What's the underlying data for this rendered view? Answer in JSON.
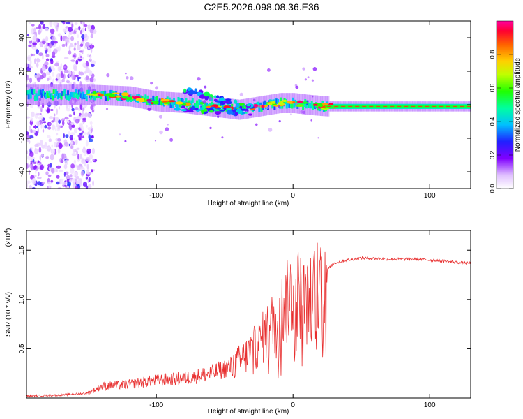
{
  "title": "C2E5.2026.098.08.36.E36",
  "colors": {
    "line": "#e83030",
    "frame": "#000000",
    "background": "#ffffff"
  },
  "chart_data": [
    {
      "type": "heatmap",
      "title": "C2E5.2026.098.08.36.E36",
      "xlabel": "Height of straight line (km)",
      "ylabel": "Frequency (Hz)",
      "xlim": [
        -195,
        130
      ],
      "ylim": [
        -50,
        50
      ],
      "x_ticks": [
        -100,
        0,
        100
      ],
      "y_ticks": [
        -40,
        -20,
        0,
        20,
        40
      ],
      "colorbar": {
        "label": "Normalized spectral amplitude",
        "range": [
          0,
          1
        ],
        "ticks": [
          0.0,
          0.2,
          0.4,
          0.6,
          0.8
        ]
      },
      "ridge": {
        "description_points_km": [
          -190,
          -150,
          -120,
          -100,
          -80,
          -60,
          -40,
          -25,
          -10,
          0,
          10,
          25,
          60,
          100,
          130
        ],
        "frequency_hz": [
          6,
          6,
          5,
          2,
          1,
          -1,
          -3,
          -1,
          1,
          1,
          0,
          -1,
          -1,
          -1,
          -1
        ]
      },
      "noise_region_km": [
        -195,
        -145
      ]
    },
    {
      "type": "line",
      "xlabel": "Height of straight line (km)",
      "ylabel": "SNR (10 * v/v)",
      "y_multiplier_label": "(x10^4)",
      "y_multiplier_text": "(x10",
      "y_multiplier_exp": "4",
      "xlim": [
        -195,
        130
      ],
      "ylim": [
        0,
        1.7
      ],
      "x_ticks": [
        -100,
        0,
        100
      ],
      "y_ticks": [
        0.5,
        1.0,
        1.5
      ],
      "series": [
        {
          "name": "SNR",
          "x": [
            -195,
            -170,
            -150,
            -140,
            -120,
            -100,
            -80,
            -60,
            -45,
            -35,
            -25,
            -15,
            -5,
            0,
            5,
            10,
            15,
            20,
            25,
            30,
            40,
            50,
            70,
            90,
            110,
            125,
            130
          ],
          "y": [
            0.02,
            0.03,
            0.05,
            0.12,
            0.14,
            0.18,
            0.2,
            0.25,
            0.32,
            0.42,
            0.55,
            0.75,
            0.95,
            1.1,
            1.05,
            0.95,
            1.05,
            1.2,
            1.3,
            1.37,
            1.4,
            1.42,
            1.41,
            1.41,
            1.39,
            1.37,
            1.37
          ]
        }
      ]
    }
  ]
}
